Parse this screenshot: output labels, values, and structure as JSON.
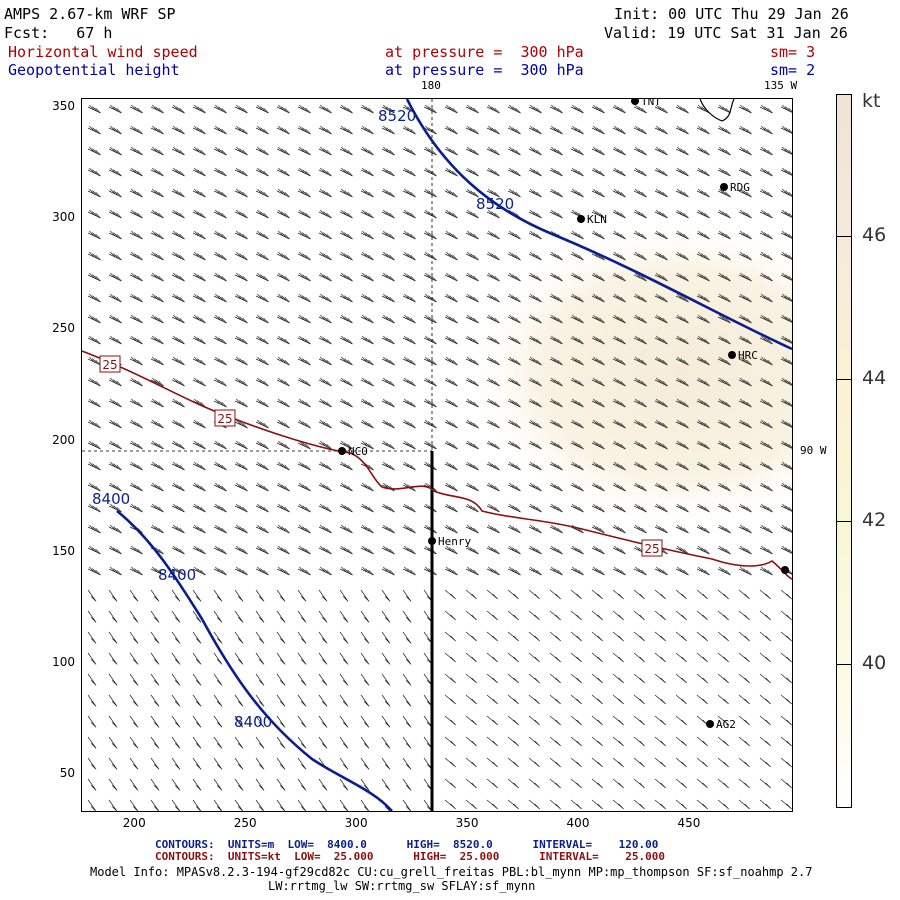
{
  "header": {
    "model": "AMPS 2.67-km WRF SP",
    "fcst": "Fcst:   67 h",
    "init": "Init: 00 UTC Thu 29 Jan 26",
    "valid": "Valid: 19 UTC Sat 31 Jan 26",
    "field1": "Horizontal wind speed",
    "field1_level": "at pressure =  300 hPa",
    "field1_sm": "sm= 3",
    "field2": "Geopotential height",
    "field2_level": "at pressure =  300 hPa",
    "field2_sm": "sm= 2"
  },
  "map": {
    "lon_180": "180",
    "lon_135w": "135 W",
    "lon_90w": "90 W",
    "stations": [
      "NCO",
      "KLN",
      "RDG",
      "HRC",
      "Henry",
      "AG2",
      "TNT"
    ],
    "height_labels": [
      "8520",
      "8520",
      "8400",
      "8400",
      "8400"
    ],
    "speed_labels": [
      "25",
      "25",
      "25"
    ]
  },
  "chart_data": {
    "type": "contour-map",
    "x_ticks": [
      200,
      250,
      300,
      350,
      400,
      450
    ],
    "y_ticks": [
      50,
      100,
      150,
      200,
      250,
      300,
      350
    ],
    "xlim": [
      176,
      496
    ],
    "ylim": [
      34,
      354
    ],
    "colorbar": {
      "unit": "kt",
      "ticks": [
        40,
        42,
        44,
        46
      ],
      "range": [
        38,
        48
      ]
    },
    "contours_height": {
      "units": "m",
      "low": 8400.0,
      "high": 8520.0,
      "interval": 120.0
    },
    "contours_speed": {
      "units": "kt",
      "low": 25.0,
      "high": 25.0,
      "interval": 25.0
    }
  },
  "footer": {
    "contours1": "CONTOURS:  UNITS=m  LOW=  8400.0      HIGH=  8520.0      INTERVAL=    120.00",
    "contours2": "CONTOURS:  UNITS=kt  LOW=  25.000      HIGH=  25.000      INTERVAL=    25.000",
    "model_info": "Model Info: MPASv8.2.3-194-gf29cd82c CU:cu_grell_freitas PBL:bl_mynn MP:mp_thompson SF:sf_noahmp 2.7",
    "model_info2": "LW:rrtmg_lw SW:rrtmg_sw SFLAY:sf_mynn"
  },
  "colors": {
    "height": "#0a1f8f",
    "speed": "#8b1010",
    "fill": "#f6eedc"
  }
}
